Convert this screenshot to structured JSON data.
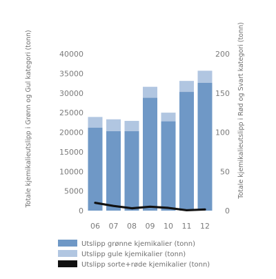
{
  "chart_data": {
    "type": "bar",
    "categories": [
      "06",
      "07",
      "08",
      "09",
      "10",
      "11",
      "12"
    ],
    "series": [
      {
        "name": "Utslipp grønne kjemikalier (tonn)",
        "type": "stacked-bar",
        "axis": "left",
        "color": "#6f98c6",
        "values": [
          21200,
          20300,
          20300,
          28800,
          22800,
          30300,
          32600
        ]
      },
      {
        "name": "Utslipp gule kjemikalier (tonn)",
        "type": "stacked-bar",
        "axis": "left",
        "color": "#b1c6e1",
        "values": [
          2700,
          3000,
          2600,
          2800,
          2200,
          2800,
          3100
        ]
      },
      {
        "name": "Utslipp sorte+røde kjemikalier (tonn)",
        "type": "line",
        "axis": "right",
        "color": "#111111",
        "values": [
          10,
          6,
          3,
          5,
          3.5,
          0.5,
          1.5
        ]
      }
    ],
    "left_axis": {
      "label": "Totale kjemikalieutslipp i Grønn og Gul kategori (tonn)",
      "ylim": [
        0,
        40000
      ],
      "ticks": [
        "0",
        "5000",
        "10000",
        "15000",
        "20000",
        "25000",
        "30000",
        "35000",
        "40000"
      ]
    },
    "right_axis": {
      "label": "Totale kjemikalieutslipp i Rød og Svart kategori (tonn)",
      "ylim": [
        0,
        200
      ],
      "ticks": [
        "0",
        "50",
        "100",
        "150",
        "200"
      ]
    },
    "grid": false,
    "legend_position": "bottom-left"
  }
}
